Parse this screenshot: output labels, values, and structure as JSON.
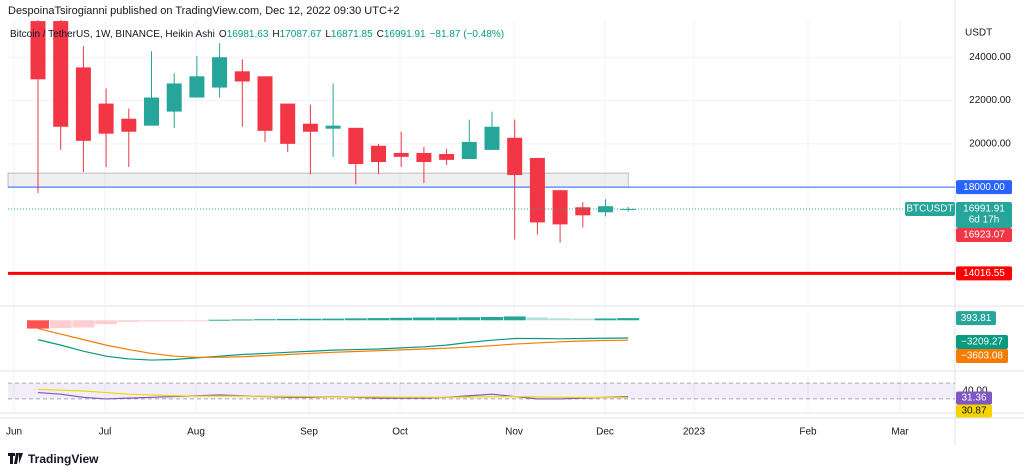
{
  "header": {
    "author_line": "DespoinaTsirogianni published on TradingView.com, Dec 12, 2022 09:30 UTC+2"
  },
  "chart_data": {
    "type": "candlestick",
    "title": "Bitcoin / TetherUS, 1W, BINANCE, Heikin Ashi",
    "ohlc_labels": [
      "O",
      "H",
      "L",
      "C"
    ],
    "change": "−81.87 (−0.48%)",
    "currency": "USDT",
    "ylim": [
      12650,
      25720
    ],
    "yticks": [
      {
        "value": 20000,
        "label": "20000.00"
      },
      {
        "value": 22000,
        "label": "22000.00"
      },
      {
        "value": 24000,
        "label": "24000.00"
      }
    ],
    "up_color": "#26a69a",
    "down_color": "#f23645",
    "candles": [
      {
        "open": 25670,
        "high": 25720,
        "low": 17720,
        "close": 22980
      },
      {
        "open": 25670,
        "high": 25720,
        "low": 19720,
        "close": 20790
      },
      {
        "open": 23530,
        "high": 24510,
        "low": 18700,
        "close": 20140
      },
      {
        "open": 21860,
        "high": 22560,
        "low": 18930,
        "close": 20470
      },
      {
        "open": 21160,
        "high": 21630,
        "low": 18930,
        "close": 20560
      },
      {
        "open": 20840,
        "high": 24280,
        "low": 20840,
        "close": 22140
      },
      {
        "open": 21490,
        "high": 23260,
        "low": 20740,
        "close": 22790
      },
      {
        "open": 22140,
        "high": 24050,
        "low": 22140,
        "close": 23120
      },
      {
        "open": 22600,
        "high": 24650,
        "low": 22140,
        "close": 24000
      },
      {
        "open": 23350,
        "high": 23910,
        "low": 20790,
        "close": 22880
      },
      {
        "open": 23120,
        "high": 23120,
        "low": 20090,
        "close": 20600
      },
      {
        "open": 21860,
        "high": 21860,
        "low": 19630,
        "close": 20000
      },
      {
        "open": 20930,
        "high": 21810,
        "low": 18600,
        "close": 20560
      },
      {
        "open": 20700,
        "high": 22790,
        "low": 19400,
        "close": 20840
      },
      {
        "open": 20740,
        "high": 20740,
        "low": 18140,
        "close": 19070
      },
      {
        "open": 19910,
        "high": 20000,
        "low": 18600,
        "close": 19160
      },
      {
        "open": 19580,
        "high": 20560,
        "low": 18930,
        "close": 19400
      },
      {
        "open": 19580,
        "high": 19860,
        "low": 18190,
        "close": 19160
      },
      {
        "open": 19530,
        "high": 19770,
        "low": 19020,
        "close": 19260
      },
      {
        "open": 19300,
        "high": 21120,
        "low": 19300,
        "close": 20090
      },
      {
        "open": 19720,
        "high": 21490,
        "low": 19720,
        "close": 20790
      },
      {
        "open": 20280,
        "high": 21120,
        "low": 15580,
        "close": 18560
      },
      {
        "open": 19350,
        "high": 19350,
        "low": 15810,
        "close": 16370
      },
      {
        "open": 17860,
        "high": 17860,
        "low": 15440,
        "close": 16280
      },
      {
        "open": 17070,
        "high": 17300,
        "low": 16140,
        "close": 16700
      },
      {
        "open": 16840,
        "high": 17440,
        "low": 16650,
        "close": 17120
      },
      {
        "open": 16981.63,
        "high": 17087.67,
        "low": 16871.85,
        "close": 16991.91
      }
    ],
    "xticks": [
      "Jun",
      "Jul",
      "Aug",
      "Sep",
      "Oct",
      "Nov",
      "Dec",
      "2023",
      "Feb",
      "Mar"
    ],
    "zone": [
      18000,
      18650
    ],
    "levels": [
      {
        "value": 18000,
        "label": "18000.00",
        "color": "#2962ff",
        "width": 1
      },
      {
        "value": 14016.55,
        "color": "#ff0000",
        "width": 3
      }
    ],
    "symbol": "BTCUSDT",
    "countdown": "6d 17h",
    "extra_price": 16923.07,
    "macd": {
      "ylim": [
        -9000,
        1500
      ],
      "histogram": [
        -1500,
        -1400,
        -1300,
        -700,
        -300,
        -200,
        -100,
        -50,
        100,
        150,
        200,
        250,
        280,
        300,
        350,
        400,
        450,
        500,
        520,
        560,
        600,
        700,
        500,
        350,
        300,
        330,
        393.81
      ],
      "series": [
        {
          "color": "#089981",
          "last_label": "−3209.27",
          "values": [
            -3500,
            -4500,
            -5600,
            -6500,
            -7000,
            -7200,
            -7100,
            -6800,
            -6500,
            -6200,
            -6000,
            -5800,
            -5600,
            -5400,
            -5300,
            -5200,
            -5000,
            -4800,
            -4500,
            -4000,
            -3600,
            -3300,
            -3300,
            -3350,
            -3300,
            -3250,
            -3209.27
          ]
        },
        {
          "color": "#f57c00",
          "last_label": "−3603.08",
          "values": [
            -1500,
            -2500,
            -3500,
            -4500,
            -5300,
            -6000,
            -6500,
            -6700,
            -6700,
            -6600,
            -6400,
            -6200,
            -6000,
            -5800,
            -5650,
            -5500,
            -5350,
            -5200,
            -5050,
            -4850,
            -4600,
            -4300,
            -4100,
            -3900,
            -3750,
            -3650,
            -3603.08
          ]
        }
      ]
    },
    "rsi": {
      "ylim": [
        23,
        47
      ],
      "levels": [
        {
          "value": 40,
          "label": "40.00"
        },
        30
      ],
      "series": [
        {
          "color": "#7e57c2",
          "values": [
            34,
            33,
            31,
            30,
            30.5,
            31,
            31.5,
            32,
            32.5,
            32,
            31.5,
            31,
            31,
            31.5,
            31,
            30.5,
            30.5,
            30.5,
            31,
            32,
            33,
            31.5,
            30,
            30,
            30.5,
            31,
            31.36
          ]
        },
        {
          "color": "#f5d400",
          "values": [
            36,
            35.5,
            35,
            34,
            33,
            32.5,
            32,
            31.8,
            31.8,
            31.8,
            31.7,
            31.6,
            31.5,
            31.4,
            31.3,
            31.2,
            31,
            31,
            31,
            31.2,
            31.4,
            31.5,
            31.2,
            31,
            30.9,
            30.9,
            30.87
          ]
        }
      ]
    }
  },
  "footer": {
    "brand": "TradingView"
  }
}
